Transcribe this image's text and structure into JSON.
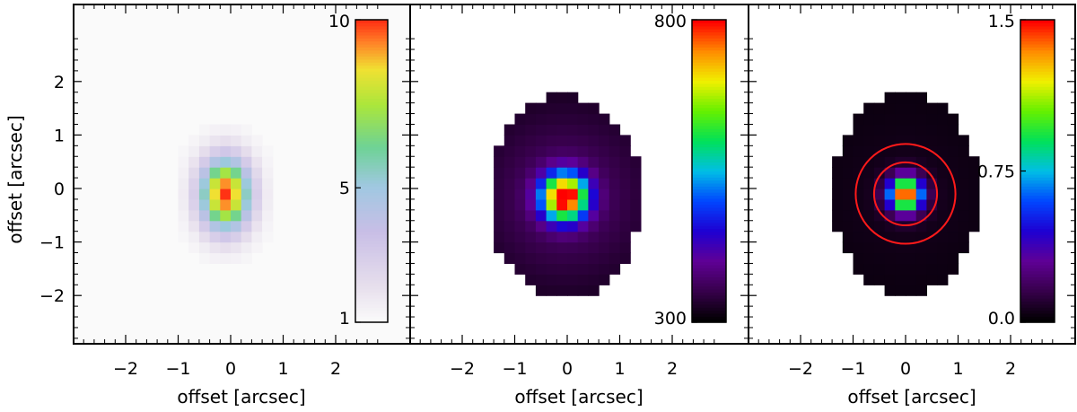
{
  "chart_data": {
    "type": "heatmap",
    "axis_label": "offset [arcsec]",
    "axis_range": [
      -3,
      3
    ],
    "ticks": [
      -2,
      -1,
      0,
      1,
      2
    ],
    "tick_labels": [
      "−2",
      "−1",
      "0",
      "1",
      "2"
    ],
    "panels": [
      {
        "colormap": "light-rainbow",
        "colorbar_ticks": [
          {
            "value": 1,
            "label": "1"
          },
          {
            "value": 5,
            "label": "5"
          },
          {
            "value": 10,
            "label": "10"
          }
        ],
        "colorbar_range": [
          1,
          10
        ],
        "peak": [
          -0.1,
          -0.1
        ],
        "center_value": 10,
        "background_value": 1,
        "sigma": [
          0.34,
          0.48
        ],
        "halo": 0,
        "mask": null,
        "circles_arcsec": []
      },
      {
        "colormap": "rainbow",
        "colorbar_ticks": [
          {
            "value": 300,
            "label": "300"
          },
          {
            "value": 800,
            "label": "800"
          }
        ],
        "colorbar_range": [
          300,
          800
        ],
        "peak": [
          -0.05,
          -0.15
        ],
        "center_value": 800,
        "background_value": 310,
        "sigma": [
          0.3,
          0.3
        ],
        "halo": 0.12,
        "mask": {
          "cx": -0.05,
          "cy": -0.15,
          "rx": 1.45,
          "ry": 1.9
        },
        "circles_arcsec": []
      },
      {
        "colormap": "rainbow",
        "colorbar_ticks": [
          {
            "value": 0.0,
            "label": "0.0"
          },
          {
            "value": 0.75,
            "label": "0.75"
          },
          {
            "value": 1.5,
            "label": "1.5"
          }
        ],
        "colorbar_range": [
          0.0,
          1.5
        ],
        "peak": [
          0.0,
          -0.1
        ],
        "center_value": 1.5,
        "background_value": 0.03,
        "sigma": [
          0.22,
          0.22
        ],
        "halo": 0.02,
        "mask": {
          "cx": 0.0,
          "cy": -0.1,
          "rx": 1.4,
          "ry": 1.9
        },
        "circles_arcsec": [
          0.6,
          0.95
        ]
      }
    ]
  }
}
